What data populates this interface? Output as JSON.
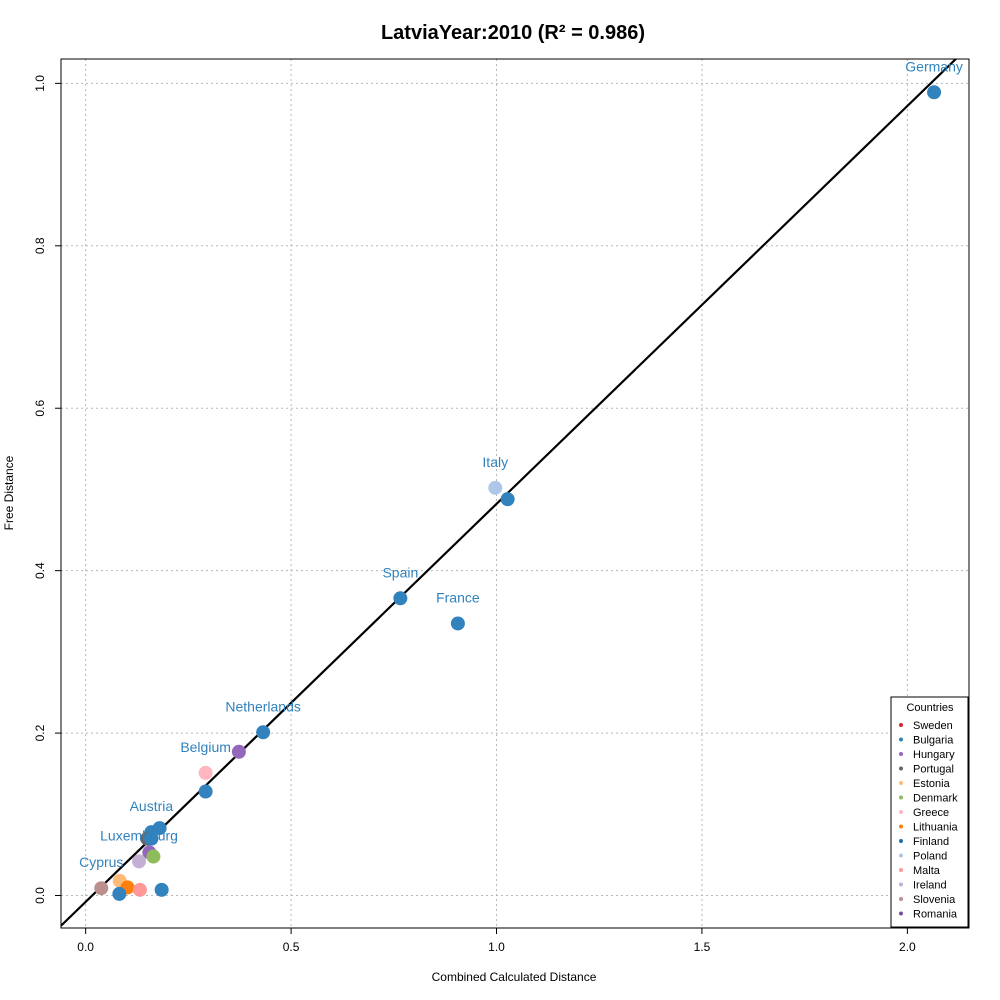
{
  "chart_data": {
    "type": "scatter",
    "title": "LatviaYear:2010 (R² = 0.986)",
    "xlabel": "Combined Calculated Distance",
    "ylabel": "Free Distance",
    "xlim": [
      -0.06,
      2.15
    ],
    "ylim": [
      -0.04,
      1.03
    ],
    "xticks": [
      0.0,
      0.5,
      1.0,
      1.5,
      2.0
    ],
    "xtick_labels": [
      "0.0",
      "0.5",
      "1.0",
      "1.5",
      "2.0"
    ],
    "yticks": [
      0.0,
      0.2,
      0.4,
      0.6,
      0.8,
      1.0
    ],
    "ytick_labels": [
      "0.0",
      "0.2",
      "0.4",
      "0.6",
      "0.8",
      "1.0"
    ],
    "grid": true,
    "fit_line": {
      "slope": 0.49,
      "intercept": -0.0078
    },
    "points": [
      {
        "x": 2.065,
        "y": 0.989,
        "color": "#3182bd",
        "label": "Germany"
      },
      {
        "x": 0.997,
        "y": 0.502,
        "color": "#aec7e8",
        "label": "Italy"
      },
      {
        "x": 1.027,
        "y": 0.488,
        "color": "#3182bd",
        "label": ""
      },
      {
        "x": 0.766,
        "y": 0.366,
        "color": "#3182bd",
        "label": "Spain"
      },
      {
        "x": 0.906,
        "y": 0.335,
        "color": "#3182bd",
        "label": "France"
      },
      {
        "x": 0.432,
        "y": 0.201,
        "color": "#3182bd",
        "label": "Netherlands"
      },
      {
        "x": 0.373,
        "y": 0.177,
        "color": "#9467bd",
        "label": ""
      },
      {
        "x": 0.292,
        "y": 0.151,
        "color": "#ffb6c1",
        "label": "Belgium"
      },
      {
        "x": 0.292,
        "y": 0.128,
        "color": "#3182bd",
        "label": ""
      },
      {
        "x": 0.18,
        "y": 0.083,
        "color": "#3182bd",
        "label": ""
      },
      {
        "x": 0.16,
        "y": 0.078,
        "color": "#3182bd",
        "label": "Austria"
      },
      {
        "x": 0.15,
        "y": 0.07,
        "color": "#666666",
        "label": ""
      },
      {
        "x": 0.16,
        "y": 0.07,
        "color": "#3182bd",
        "label": ""
      },
      {
        "x": 0.155,
        "y": 0.053,
        "color": "#9467bd",
        "label": ""
      },
      {
        "x": 0.165,
        "y": 0.048,
        "color": "#8fbc5a",
        "label": ""
      },
      {
        "x": 0.13,
        "y": 0.042,
        "color": "#c5b0d5",
        "label": "Luxembourg"
      },
      {
        "x": 0.038,
        "y": 0.009,
        "color": "#bc8f8f",
        "label": "Cyprus"
      },
      {
        "x": 0.083,
        "y": 0.018,
        "color": "#ffbb78",
        "label": ""
      },
      {
        "x": 0.102,
        "y": 0.01,
        "color": "#ff7f0e",
        "label": ""
      },
      {
        "x": 0.132,
        "y": 0.007,
        "color": "#ff9896",
        "label": ""
      },
      {
        "x": 0.185,
        "y": 0.007,
        "color": "#3182bd",
        "label": ""
      },
      {
        "x": 0.082,
        "y": 0.002,
        "color": "#3182bd",
        "label": ""
      }
    ],
    "legend": {
      "title": "Countries",
      "position": "bottom-right",
      "entries": [
        {
          "name": "Sweden",
          "color": "#d62728"
        },
        {
          "name": "Bulgaria",
          "color": "#3182bd"
        },
        {
          "name": "Hungary",
          "color": "#9467bd"
        },
        {
          "name": "Portugal",
          "color": "#666666"
        },
        {
          "name": "Estonia",
          "color": "#ffbb78"
        },
        {
          "name": "Denmark",
          "color": "#8fbc5a"
        },
        {
          "name": "Greece",
          "color": "#ffb6c1"
        },
        {
          "name": "Lithuania",
          "color": "#ff7f0e"
        },
        {
          "name": "Finland",
          "color": "#1f6fa8"
        },
        {
          "name": "Poland",
          "color": "#aec7e8"
        },
        {
          "name": "Malta",
          "color": "#ff9896"
        },
        {
          "name": "Ireland",
          "color": "#c5b0d5"
        },
        {
          "name": "Slovenia",
          "color": "#bc8f8f"
        },
        {
          "name": "Romania",
          "color": "#7b4fa0"
        }
      ]
    }
  }
}
